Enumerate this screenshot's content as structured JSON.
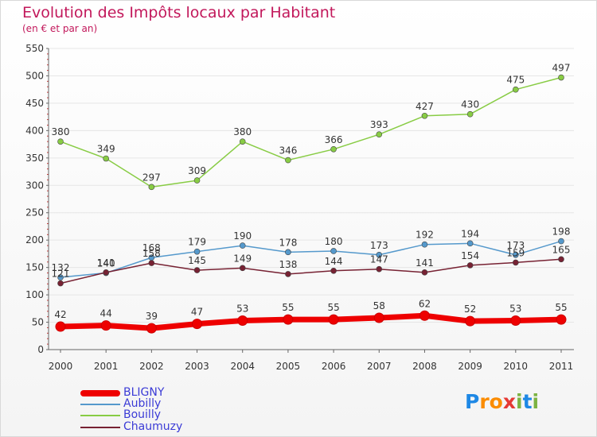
{
  "header": {
    "title": "Evolution des Impôts locaux par Habitant",
    "subtitle": "(en € et par an)"
  },
  "colors": {
    "title": "#c2185b",
    "legend_text": "#3b3bd6",
    "axis": "#666666",
    "grid": "#e6e6e6"
  },
  "chart_data": {
    "type": "line",
    "x": [
      "2000",
      "2001",
      "2002",
      "2003",
      "2004",
      "2005",
      "2006",
      "2007",
      "2008",
      "2009",
      "2010",
      "2011"
    ],
    "ylim": [
      0,
      550
    ],
    "yticks": [
      0,
      50,
      100,
      150,
      200,
      250,
      300,
      350,
      400,
      450,
      500,
      550
    ],
    "grid": true,
    "legend_position": "bottom-left",
    "series": [
      {
        "name": "BLIGNY",
        "color": "#ee0000",
        "values": [
          42,
          44,
          39,
          47,
          53,
          55,
          55,
          58,
          62,
          52,
          53,
          55
        ]
      },
      {
        "name": "Aubilly",
        "color": "#5599cc",
        "values": [
          132,
          140,
          168,
          179,
          190,
          178,
          180,
          173,
          192,
          194,
          173,
          198
        ]
      },
      {
        "name": "Bouilly",
        "color": "#88cc44",
        "values": [
          380,
          349,
          297,
          309,
          380,
          346,
          366,
          393,
          427,
          430,
          475,
          497
        ]
      },
      {
        "name": "Chaumuzy",
        "color": "#772233",
        "values": [
          121,
          141,
          158,
          145,
          149,
          138,
          144,
          147,
          141,
          154,
          159,
          165
        ]
      }
    ]
  },
  "logo": {
    "text": "Proxiti",
    "letter_colors": [
      "#1e88e5",
      "#fb8c00",
      "#fb8c00",
      "#e53935",
      "#7cb342",
      "#1e88e5",
      "#7cb342"
    ]
  }
}
